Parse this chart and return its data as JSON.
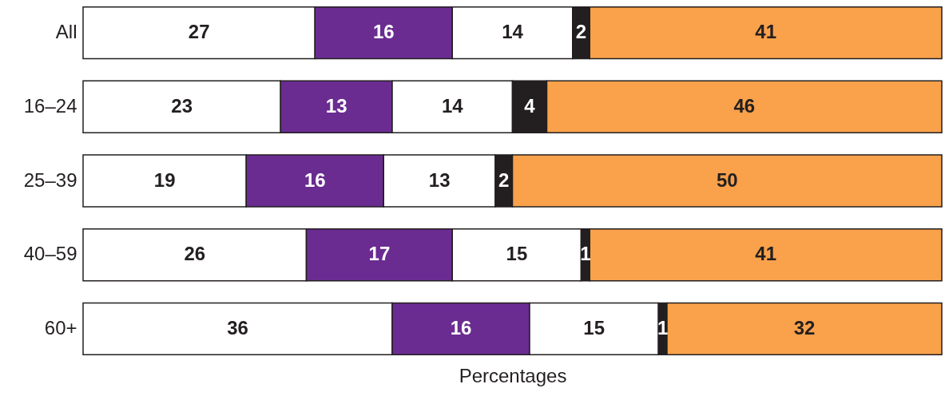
{
  "chart_data": {
    "type": "bar",
    "orientation": "horizontal",
    "stacked": true,
    "xlabel": "Percentages",
    "categories": [
      "All",
      "16–24",
      "25–39",
      "40–59",
      "60+"
    ],
    "series": [
      {
        "color": "#ffffff",
        "values": [
          27,
          23,
          19,
          26,
          36
        ]
      },
      {
        "color": "#6a2c91",
        "values": [
          16,
          13,
          16,
          17,
          16
        ]
      },
      {
        "color": "#ffffff",
        "values": [
          14,
          14,
          13,
          15,
          15
        ]
      },
      {
        "color": "#231f20",
        "values": [
          2,
          4,
          2,
          1,
          1
        ]
      },
      {
        "color": "#f9a24b",
        "values": [
          41,
          46,
          50,
          41,
          32
        ]
      }
    ],
    "xlim": [
      0,
      100
    ],
    "tick_labels": "y",
    "data_labels": true,
    "grid": false,
    "legend": false
  }
}
